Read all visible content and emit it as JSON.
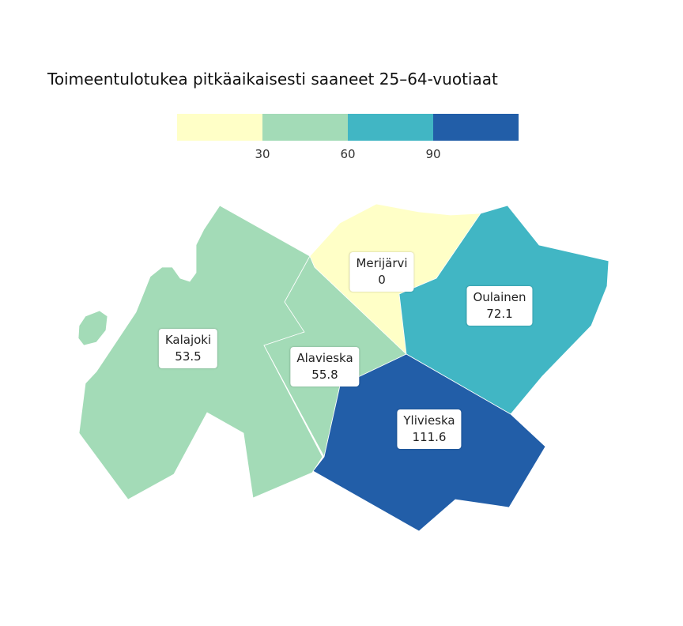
{
  "title": "Toimeentulotukea pitkäaikaisesti saaneet 25–64-vuotiaat",
  "legend": {
    "colors": [
      "#ffffc7",
      "#a3dbb7",
      "#41b6c4",
      "#225ea8"
    ],
    "ticks": [
      "30",
      "60",
      "90"
    ]
  },
  "regions": [
    {
      "name": "Kalajoki",
      "value": "53.5",
      "color": "#a3dbb7"
    },
    {
      "name": "Alavieska",
      "value": "55.8",
      "color": "#a3dbb7"
    },
    {
      "name": "Merijärvi",
      "value": "0",
      "color": "#ffffc7"
    },
    {
      "name": "Oulainen",
      "value": "72.1",
      "color": "#41b6c4"
    },
    {
      "name": "Ylivieska",
      "value": "111.6",
      "color": "#225ea8"
    }
  ]
}
